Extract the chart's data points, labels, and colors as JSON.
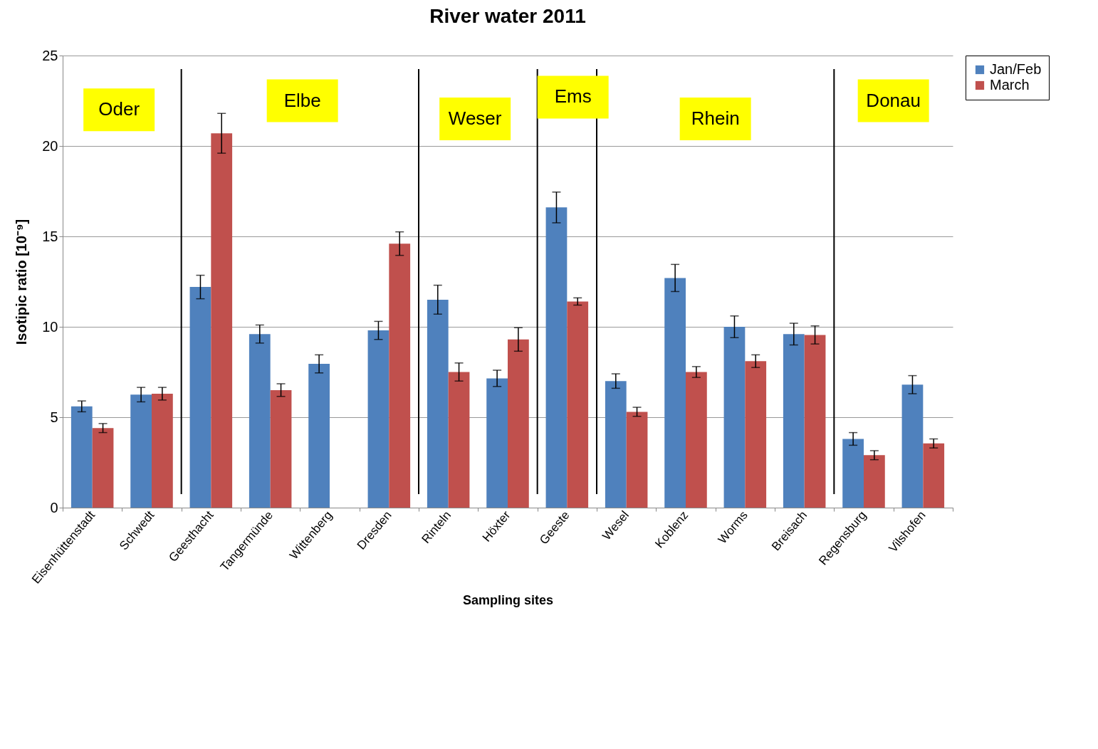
{
  "chart_data": {
    "type": "bar",
    "title": "River water 2011",
    "xlabel": "Sampling sites",
    "ylabel": "Isotipic ratio [10⁻⁹]",
    "categories": [
      "Eisenhüttenstadt",
      "Schwedt",
      "Geesthacht",
      "Tangermünde",
      "Wittenberg",
      "Dresden",
      "Rinteln",
      "Höxter",
      "Geeste",
      "Wesel",
      "Koblenz",
      "Worms",
      "Breisach",
      "Regensburg",
      "Vilshofen"
    ],
    "series": [
      {
        "name": "Jan/Feb",
        "color": "#4f81bd",
        "values": [
          5.6,
          6.25,
          12.2,
          9.6,
          7.95,
          9.8,
          11.5,
          7.15,
          16.6,
          7.0,
          12.7,
          10.0,
          9.6,
          3.8,
          6.8
        ],
        "errors": [
          0.3,
          0.4,
          0.65,
          0.5,
          0.5,
          0.5,
          0.8,
          0.45,
          0.85,
          0.4,
          0.75,
          0.6,
          0.6,
          0.35,
          0.5
        ]
      },
      {
        "name": "March",
        "color": "#c0504d",
        "values": [
          4.4,
          6.3,
          20.7,
          6.5,
          null,
          14.6,
          7.5,
          9.3,
          11.4,
          5.3,
          7.5,
          8.1,
          9.55,
          2.9,
          3.55
        ],
        "errors": [
          0.25,
          0.35,
          1.1,
          0.35,
          null,
          0.65,
          0.5,
          0.65,
          0.2,
          0.25,
          0.3,
          0.35,
          0.5,
          0.25,
          0.25
        ]
      }
    ],
    "annotations": [
      "Oder",
      "Elbe",
      "Weser",
      "Ems",
      "Rhein",
      "Donau"
    ],
    "ylim": [
      0,
      25
    ],
    "yticks": [
      0,
      5,
      10,
      15,
      20,
      25
    ],
    "grid": "y",
    "legend": "right"
  }
}
